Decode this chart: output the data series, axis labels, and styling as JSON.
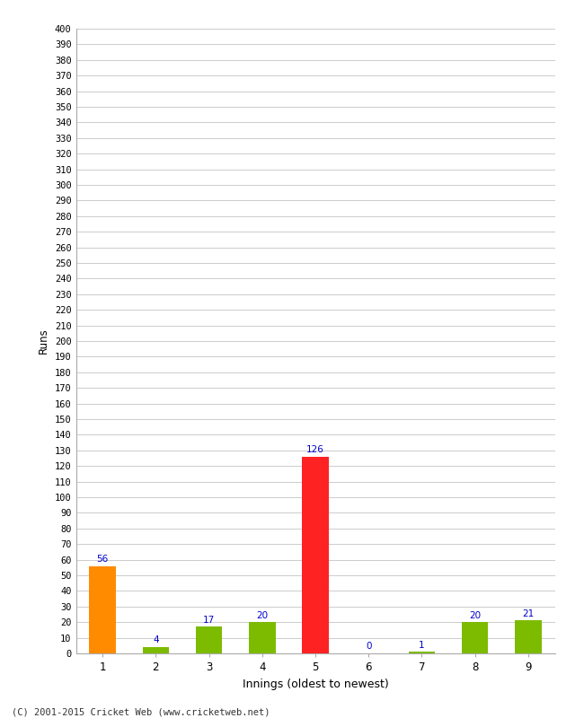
{
  "innings": [
    1,
    2,
    3,
    4,
    5,
    6,
    7,
    8,
    9
  ],
  "values": [
    56,
    4,
    17,
    20,
    126,
    0,
    1,
    20,
    21
  ],
  "bar_colors": [
    "#ff8c00",
    "#7cbb00",
    "#7cbb00",
    "#7cbb00",
    "#ff2222",
    "#7cbb00",
    "#7cbb00",
    "#7cbb00",
    "#7cbb00"
  ],
  "label_color": "#0000cc",
  "label_fontsize": 7.5,
  "xlabel": "Innings (oldest to newest)",
  "ylabel": "Runs",
  "ylim": [
    0,
    400
  ],
  "ytick_step": 10,
  "background_color": "#ffffff",
  "grid_color": "#cccccc",
  "footer": "(C) 2001-2015 Cricket Web (www.cricketweb.net)"
}
